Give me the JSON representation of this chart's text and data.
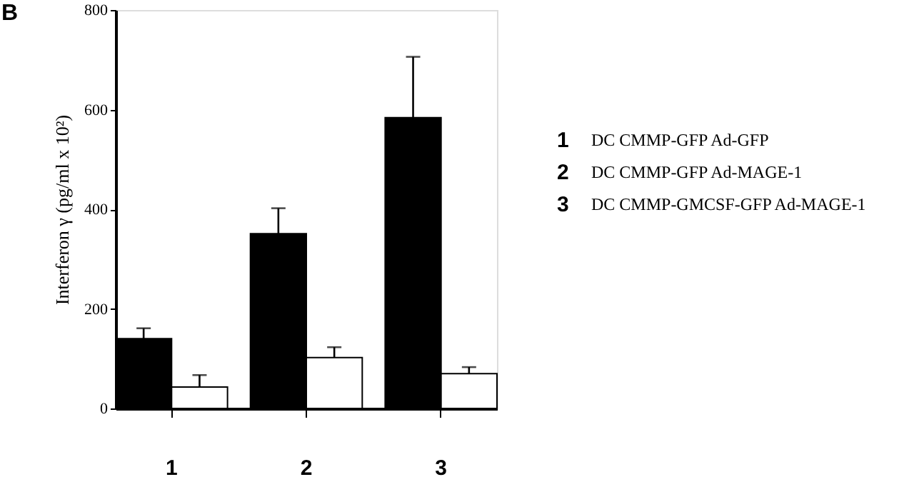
{
  "chart_data": {
    "type": "bar",
    "title": "B",
    "ylabel": "Interferon γ (pg/ml x 10²)",
    "categories": [
      "1",
      "2",
      "3"
    ],
    "series": [
      {
        "color": "#000000",
        "values": [
          140,
          351,
          584
        ],
        "errors": [
          [
            140,
            161
          ],
          [
            351,
            402
          ],
          [
            584,
            706
          ]
        ]
      },
      {
        "color": "#ffffff",
        "values": [
          43,
          102,
          70
        ],
        "errors": [
          [
            43,
            67
          ],
          [
            102,
            123
          ],
          [
            70,
            83
          ]
        ]
      }
    ],
    "ylim": [
      0,
      800
    ],
    "yticks": [
      0,
      200,
      400,
      600,
      800
    ],
    "grid": false,
    "annotations": [
      "1 DC CMMP-GFP Ad-GFP",
      "2 DC CMMP-GFP Ad-MAGE-1",
      "3 DC CMMP-GMCSF-GFP Ad-MAGE-1"
    ]
  }
}
